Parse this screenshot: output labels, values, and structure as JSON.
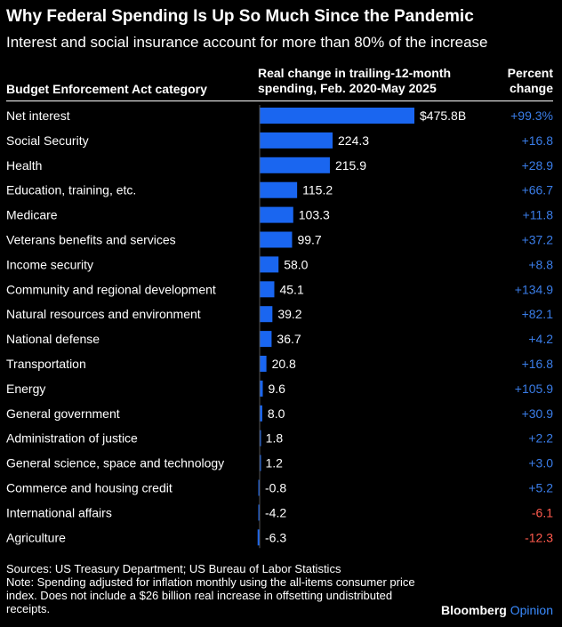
{
  "title": "Why Federal Spending Is Up So Much Since the Pandemic",
  "subtitle": "Interest and social insurance account for more than 80% of the increase",
  "headers": {
    "category": "Budget Enforcement Act category",
    "value": "Real change in trailing-12-month spending, Feb. 2020-May 2025",
    "percent": "Percent change"
  },
  "colors": {
    "bar": "#1a66f0",
    "positive": "#3a7de8",
    "negative": "#ff5a4d",
    "background": "#000000"
  },
  "chart_data": {
    "type": "bar",
    "orientation": "horizontal",
    "categories": [
      "Net interest",
      "Social Security",
      "Health",
      "Education, training, etc.",
      "Medicare",
      "Veterans benefits and services",
      "Income security",
      "Community and regional development",
      "Natural resources and environment",
      "National defense",
      "Transportation",
      "Energy",
      "General government",
      "Administration of justice",
      "General science, space and technology",
      "Commerce and housing credit",
      "International affairs",
      "Agriculture"
    ],
    "values": [
      475.8,
      224.3,
      215.9,
      115.2,
      103.3,
      99.7,
      58.0,
      45.1,
      39.2,
      36.7,
      20.8,
      9.6,
      8.0,
      1.8,
      1.2,
      -0.8,
      -4.2,
      -6.3
    ],
    "value_labels": [
      "$475.8B",
      "224.3",
      "215.9",
      "115.2",
      "103.3",
      "99.7",
      "58.0",
      "45.1",
      "39.2",
      "36.7",
      "20.8",
      "9.6",
      "8.0",
      "1.8",
      "1.2",
      "-0.8",
      "-4.2",
      "-6.3"
    ],
    "percent_change": [
      "+99.3%",
      "+16.8",
      "+28.9",
      "+66.7",
      "+11.8",
      "+37.2",
      "+8.8",
      "+134.9",
      "+82.1",
      "+4.2",
      "+16.8",
      "+105.9",
      "+30.9",
      "+2.2",
      "+3.0",
      "+5.2",
      "-6.1",
      "-12.3"
    ],
    "unit": "billions of dollars"
  },
  "footer": {
    "sources": "Sources: US Treasury Department; US Bureau of Labor Statistics",
    "note": "Note: Spending adjusted for inflation monthly using the all-items consumer price index. Does not include a $26 billion real increase in offsetting undistributed receipts.",
    "brand_main": "Bloomberg",
    "brand_sub": "Opinion"
  }
}
